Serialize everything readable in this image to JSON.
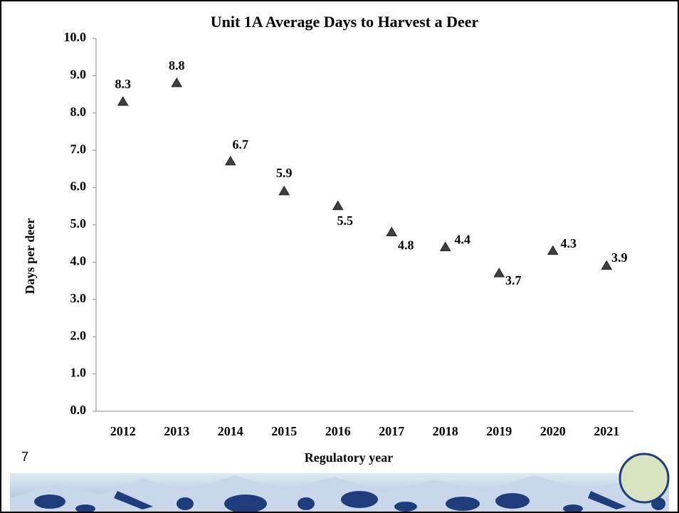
{
  "chart_data": {
    "type": "line",
    "title": "Unit 1A Average Days to Harvest a Deer",
    "x_label": "Regulatory year",
    "y_label": "Days per deer",
    "categories": [
      "2012",
      "2013",
      "2014",
      "2015",
      "2016",
      "2017",
      "2018",
      "2019",
      "2020",
      "2021"
    ],
    "series": [
      {
        "name": "Days per deer",
        "color": "#6e6e6e",
        "marker_color": "#404040",
        "values": [
          8.3,
          8.8,
          6.7,
          5.9,
          5.5,
          4.8,
          4.4,
          3.7,
          4.3,
          3.9
        ]
      }
    ],
    "ylim": [
      0,
      10
    ],
    "yticks": [
      {
        "value": 0,
        "label": "0.0"
      },
      {
        "value": 1,
        "label": "1.0"
      },
      {
        "value": 2,
        "label": "2.0"
      },
      {
        "value": 3,
        "label": "3.0"
      },
      {
        "value": 4,
        "label": "4.0"
      },
      {
        "value": 5,
        "label": "5.0"
      },
      {
        "value": 6,
        "label": "6.0"
      },
      {
        "value": 7,
        "label": "7.0"
      },
      {
        "value": 8,
        "label": "8.0"
      },
      {
        "value": 9,
        "label": "9.0"
      },
      {
        "value": 10,
        "label": "10.0"
      }
    ],
    "grid": false
  },
  "slide_number": "7"
}
